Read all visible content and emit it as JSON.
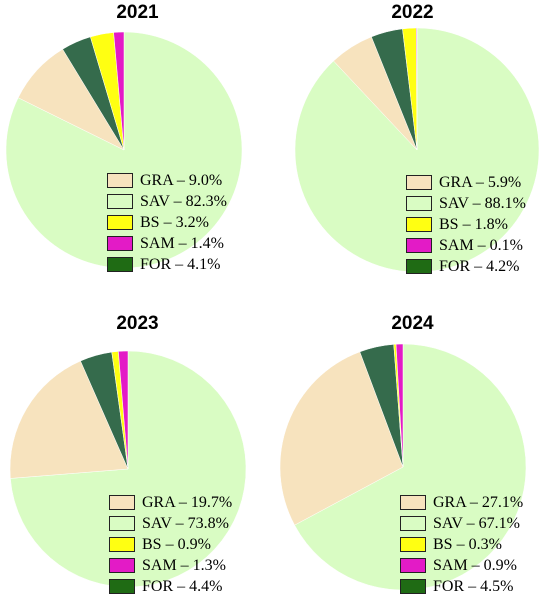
{
  "colors": {
    "GRA": "#f7e3be",
    "SAV": "#d9fcc3",
    "BS": "#ffff12",
    "SAM": "#e31bc6",
    "FOR": "#1f6b14",
    "FOR_slice": "#356b4c"
  },
  "chart_data": [
    {
      "type": "pie",
      "title": "2021",
      "categories": [
        "GRA",
        "SAV",
        "BS",
        "SAM",
        "FOR"
      ],
      "values": [
        9.0,
        82.3,
        3.2,
        1.4,
        4.1
      ],
      "legend": [
        "GRA – 9.0%",
        "SAV – 82.3%",
        "BS – 3.2%",
        "SAM – 1.4%",
        "FOR – 4.1%"
      ]
    },
    {
      "type": "pie",
      "title": "2022",
      "categories": [
        "GRA",
        "SAV",
        "BS",
        "SAM",
        "FOR"
      ],
      "values": [
        5.9,
        88.1,
        1.8,
        0.1,
        4.2
      ],
      "legend": [
        "GRA – 5.9%",
        "SAV – 88.1%",
        "BS – 1.8%",
        "SAM – 0.1%",
        "FOR – 4.2%"
      ]
    },
    {
      "type": "pie",
      "title": "2023",
      "categories": [
        "GRA",
        "SAV",
        "BS",
        "SAM",
        "FOR"
      ],
      "values": [
        19.7,
        73.8,
        0.9,
        1.3,
        4.4
      ],
      "legend": [
        "GRA – 19.7%",
        "SAV – 73.8%",
        "BS – 0.9%",
        "SAM – 1.3%",
        "FOR – 4.4%"
      ]
    },
    {
      "type": "pie",
      "title": "2024",
      "categories": [
        "GRA",
        "SAV",
        "BS",
        "SAM",
        "FOR"
      ],
      "values": [
        27.1,
        67.1,
        0.3,
        0.9,
        4.5
      ],
      "legend": [
        "GRA – 27.1%",
        "SAV – 67.1%",
        "BS – 0.3%",
        "SAM – 0.9%",
        "FOR – 4.5%"
      ]
    }
  ]
}
